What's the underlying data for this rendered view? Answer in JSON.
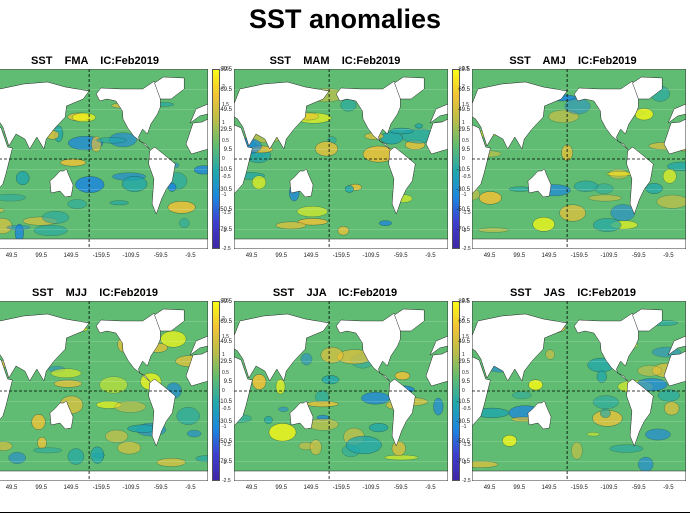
{
  "title": "SST anomalies",
  "chart_data": [
    {
      "type": "heatmap",
      "title": "SST    FMA    IC:Feb2019",
      "variable": "SST anomalies",
      "season": "FMA",
      "initial_condition": "Feb2019",
      "yticks": [
        "89.5",
        "69.5",
        "49.5",
        "29.5",
        "9.5",
        "-10.5",
        "-30.5",
        "-50.5",
        "-70.5"
      ],
      "xticks": [
        "49.5",
        "99.5",
        "149.5",
        "-159.5",
        "-109.5",
        "-59.5",
        "-9.5"
      ],
      "colorbar": {
        "ticks": [
          "2.5",
          "2",
          "1.5",
          "1",
          "0.5",
          "0",
          "-0.5",
          "-1",
          "-1.5",
          "-2",
          "-2.5"
        ],
        "range": [
          -2.5,
          2.5
        ],
        "colormap": "parula"
      }
    },
    {
      "type": "heatmap",
      "title": "SST    MAM    IC:Feb2019",
      "variable": "SST anomalies",
      "season": "MAM",
      "initial_condition": "Feb2019",
      "yticks": [
        "89.5",
        "69.5",
        "49.5",
        "29.5",
        "9.5",
        "-10.5",
        "-30.5",
        "-50.5",
        "-70.5"
      ],
      "xticks": [
        "49.5",
        "99.5",
        "149.5",
        "-159.5",
        "-109.5",
        "-59.5",
        "-9.5"
      ],
      "colorbar": {
        "ticks": [
          "2.5",
          "2",
          "1.5",
          "1",
          "0.5",
          "0",
          "-0.5",
          "-1",
          "-1.5",
          "-2",
          "-2.5"
        ],
        "range": [
          -2.5,
          2.5
        ],
        "colormap": "parula"
      }
    },
    {
      "type": "heatmap",
      "title": "SST    AMJ    IC:Feb2019",
      "variable": "SST anomalies",
      "season": "AMJ",
      "initial_condition": "Feb2019",
      "yticks": [
        "89.5",
        "69.5",
        "49.5",
        "29.5",
        "9.5",
        "-10.5",
        "-30.5",
        "-50.5",
        "-70.5"
      ],
      "xticks": [
        "49.5",
        "99.5",
        "149.5",
        "-159.5",
        "-109.5",
        "-59.5",
        "-9.5"
      ],
      "colorbar": {
        "ticks": [
          "2.5",
          "2",
          "1.5",
          "1",
          "0.5",
          "0",
          "-0.5",
          "-1",
          "-1.5",
          "-2",
          "-2.5"
        ],
        "range": [
          -2.5,
          2.5
        ],
        "colormap": "parula"
      }
    },
    {
      "type": "heatmap",
      "title": "SST    MJJ    IC:Feb2019",
      "variable": "SST anomalies",
      "season": "MJJ",
      "initial_condition": "Feb2019",
      "yticks": [
        "89.5",
        "69.5",
        "49.5",
        "29.5",
        "9.5",
        "-10.5",
        "-30.5",
        "-50.5",
        "-70.5"
      ],
      "xticks": [
        "49.5",
        "99.5",
        "149.5",
        "-159.5",
        "-109.5",
        "-59.5",
        "-9.5"
      ],
      "colorbar": {
        "ticks": [
          "2.5",
          "2",
          "1.5",
          "1",
          "0.5",
          "0",
          "-0.5",
          "-1",
          "-1.5",
          "-2",
          "-2.5"
        ],
        "range": [
          -2.5,
          2.5
        ],
        "colormap": "parula"
      }
    },
    {
      "type": "heatmap",
      "title": "SST    JJA    IC:Feb2019",
      "variable": "SST anomalies",
      "season": "JJA",
      "initial_condition": "Feb2019",
      "yticks": [
        "89.5",
        "69.5",
        "49.5",
        "29.5",
        "9.5",
        "-10.5",
        "-30.5",
        "-50.5",
        "-70.5"
      ],
      "xticks": [
        "49.5",
        "99.5",
        "149.5",
        "-159.5",
        "-109.5",
        "-59.5",
        "-9.5"
      ],
      "colorbar": {
        "ticks": [
          "2.5",
          "2",
          "1.5",
          "1",
          "0.5",
          "0",
          "-0.5",
          "-1",
          "-1.5",
          "-2",
          "-2.5"
        ],
        "range": [
          -2.5,
          2.5
        ],
        "colormap": "parula"
      }
    },
    {
      "type": "heatmap",
      "title": "SST    JAS    IC:Feb2019",
      "variable": "SST anomalies",
      "season": "JAS",
      "initial_condition": "Feb2019",
      "yticks": [
        "89.5",
        "69.5",
        "49.5",
        "29.5",
        "9.5",
        "-10.5",
        "-30.5",
        "-50.5",
        "-70.5"
      ],
      "xticks": [
        "49.5",
        "99.5",
        "149.5",
        "-159.5",
        "-109.5",
        "-59.5",
        "-9.5"
      ],
      "colorbar": {
        "ticks": [
          "2.5",
          "2",
          "1.5",
          "1",
          "0.5",
          "0",
          "-0.5",
          "-1",
          "-1.5",
          "-2",
          "-2.5"
        ],
        "range": [
          -2.5,
          2.5
        ],
        "colormap": "parula"
      }
    }
  ],
  "colors": {
    "ocean": "#5fbc72",
    "warm": "#f1c336",
    "hot": "#fafa14",
    "cool": "#20a7ad",
    "cold": "#1c86e0",
    "land": "#ffffff"
  }
}
